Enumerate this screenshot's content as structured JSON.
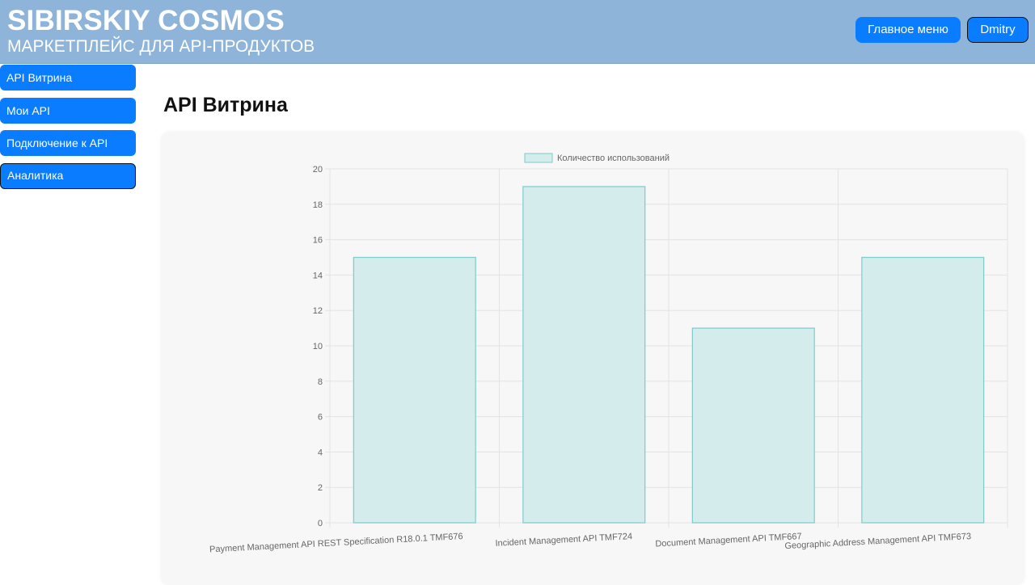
{
  "header": {
    "brand_title": "SIBIRSKIY COSMOS",
    "brand_subtitle": "МАРКЕТПЛЕЙС ДЛЯ API-ПРОДУКТОВ",
    "main_menu_label": "Главное меню",
    "user_label": "Dmitry"
  },
  "sidebar": {
    "items": [
      {
        "label": "API Витрина",
        "active": false
      },
      {
        "label": "Мои API",
        "active": false
      },
      {
        "label": "Подключение к API",
        "active": false
      },
      {
        "label": "Аналитика",
        "active": true
      }
    ]
  },
  "main": {
    "title": "API Витрина"
  },
  "colors": {
    "header_bg": "#8fb4d9",
    "accent": "#0a7cff",
    "bar_fill": "#d4ecec",
    "bar_border": "#7fcaca"
  },
  "chart_data": {
    "type": "bar",
    "categories": [
      "Payment Management API REST Specification R18.0.1 TMF676",
      "Incident Management API TMF724",
      "Document Management API TMF667",
      "Geographic Address Management API TMF673"
    ],
    "series": [
      {
        "name": "Количество использований",
        "values": [
          15,
          19,
          11,
          15
        ]
      }
    ],
    "ylim": [
      0,
      20
    ],
    "yticks": [
      0,
      2,
      4,
      6,
      8,
      10,
      12,
      14,
      16,
      18,
      20
    ],
    "grid": true,
    "legend": "top-center"
  }
}
